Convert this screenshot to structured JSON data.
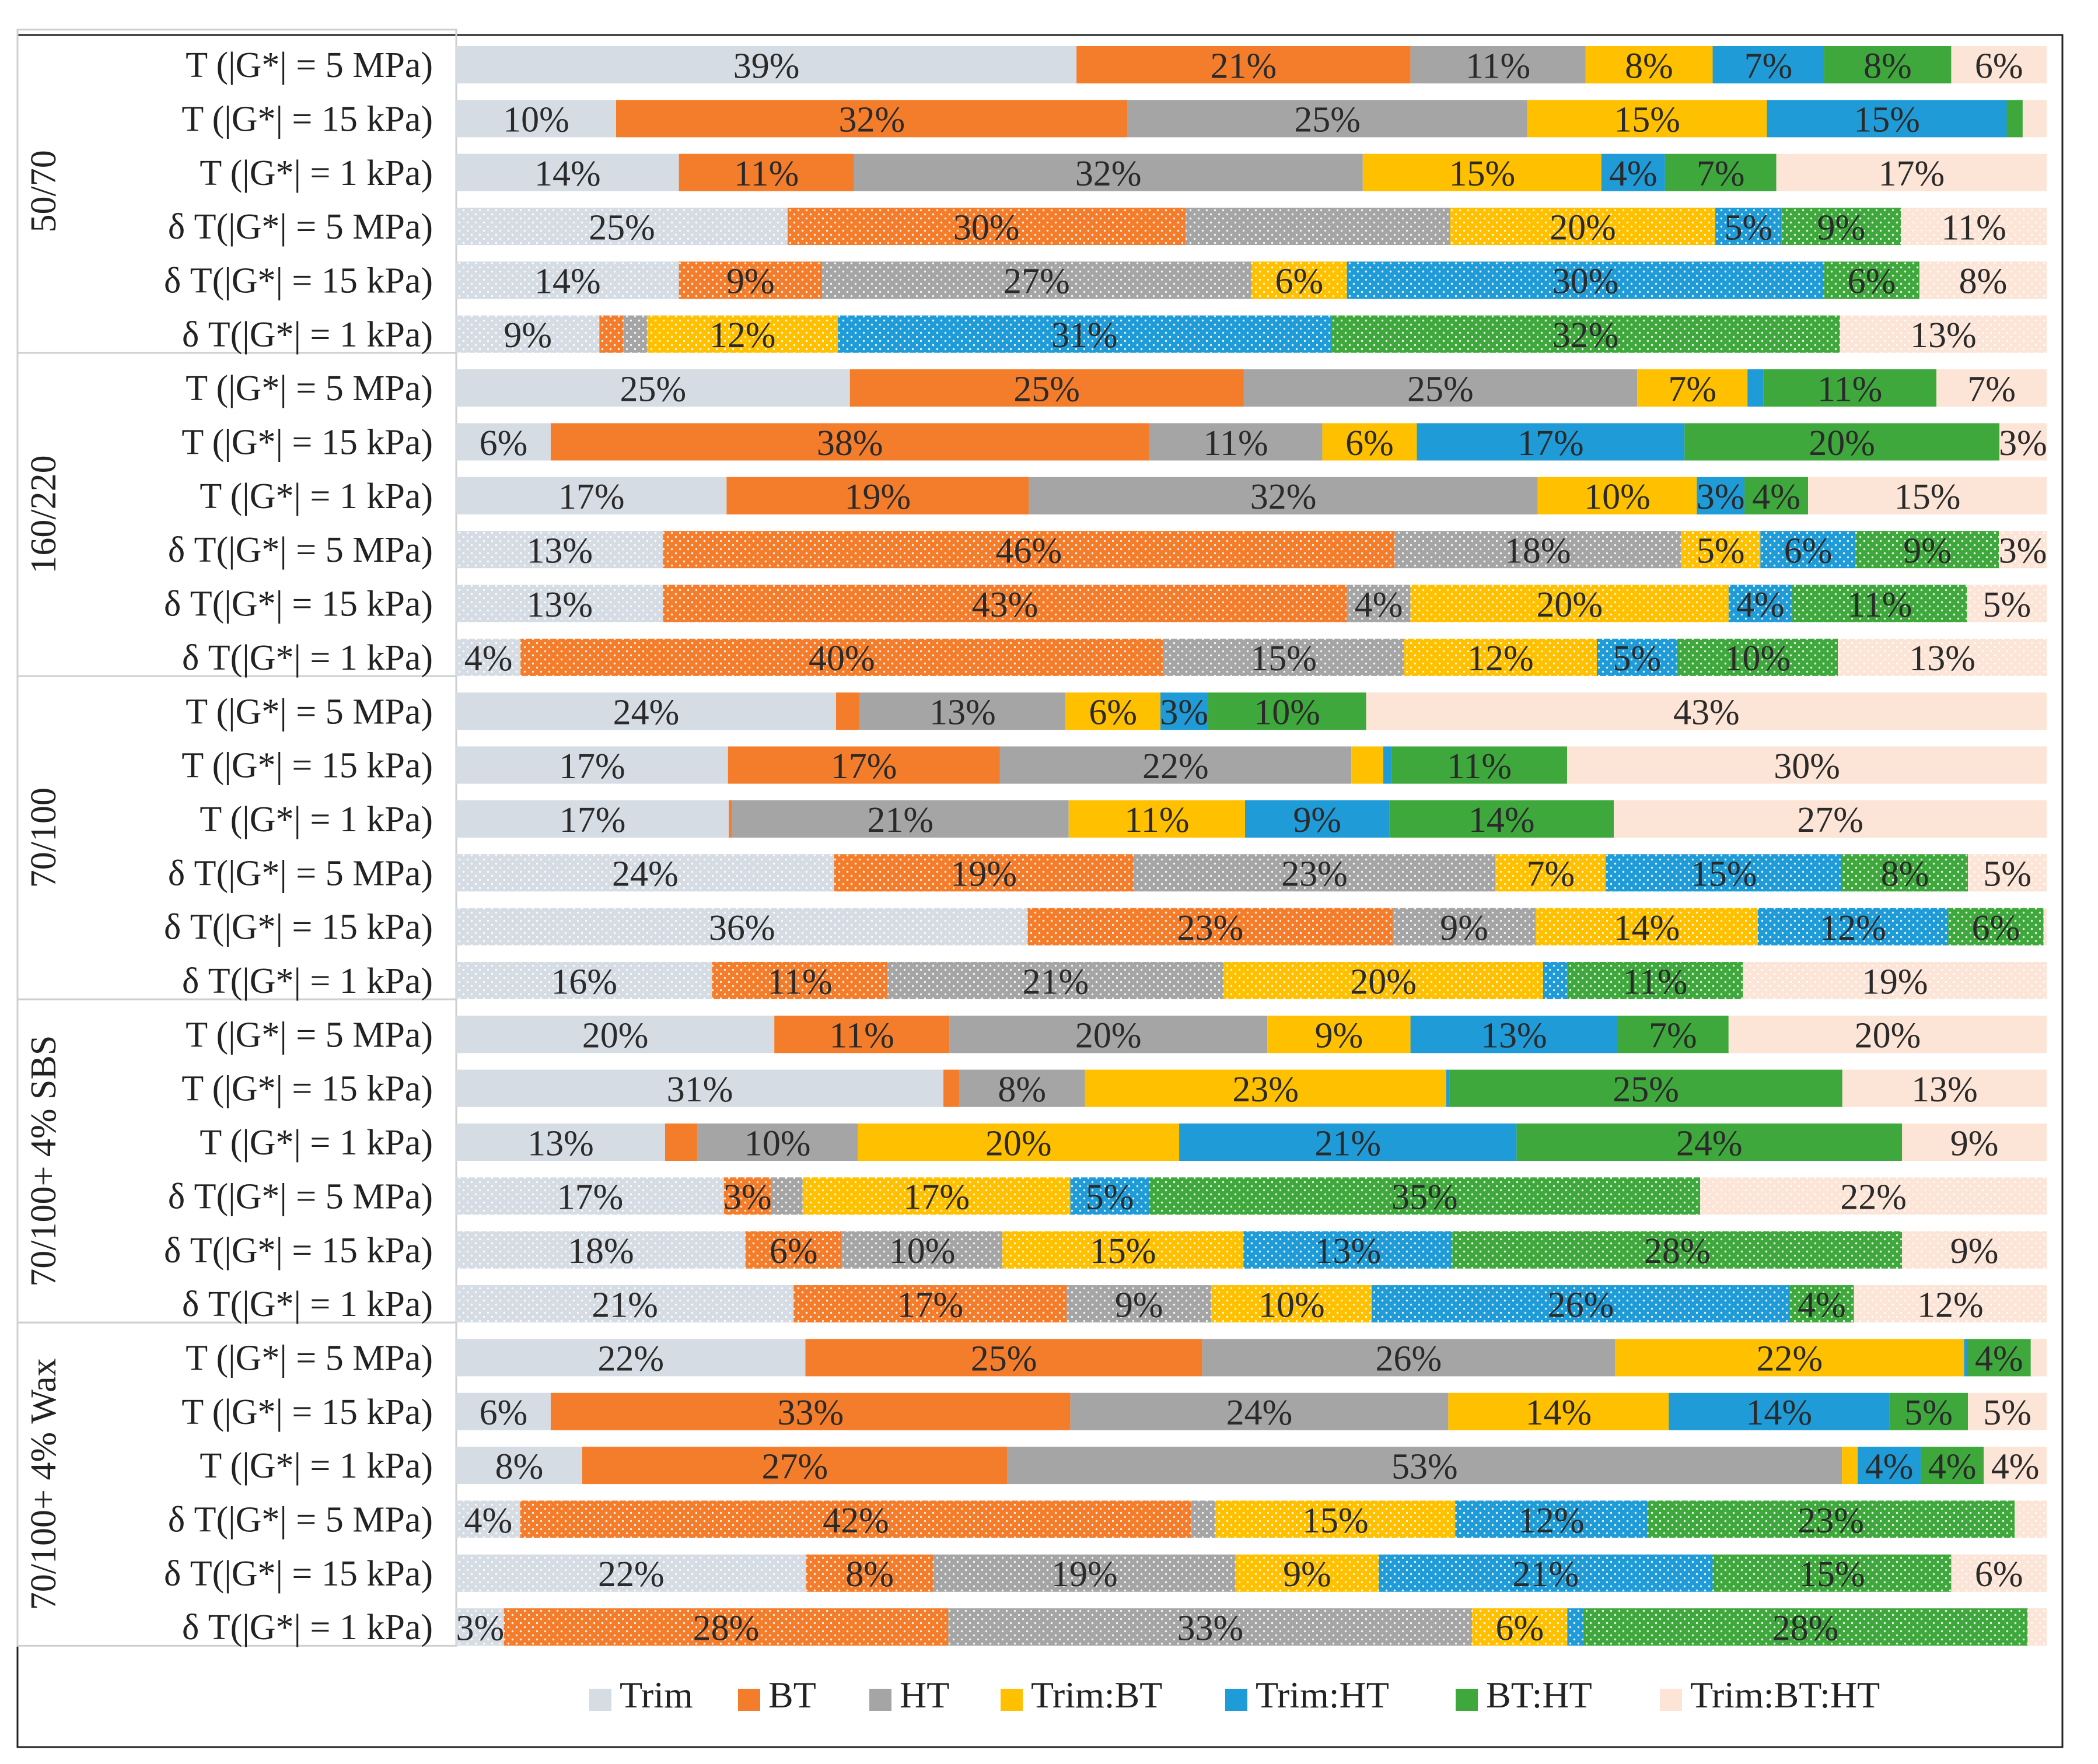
{
  "chart_data": {
    "type": "bar",
    "orientation": "horizontal",
    "stacked": "percent",
    "grid": false,
    "legend_position": "bottom",
    "series": [
      {
        "name": "Trim",
        "color": "#d6dce4"
      },
      {
        "name": "BT",
        "color": "#f47d2b"
      },
      {
        "name": "HT",
        "color": "#a5a5a5"
      },
      {
        "name": "Trim:BT",
        "color": "#ffc000"
      },
      {
        "name": "Trim:HT",
        "color": "#1f9bd7"
      },
      {
        "name": "BT:HT",
        "color": "#3fa83c"
      },
      {
        "name": "Trim:BT:HT",
        "color": "#fce4d6"
      }
    ],
    "groups": [
      {
        "name": "50/70",
        "rows": [
          {
            "label": "T (|G*| = 5 MPa)",
            "dotted": false,
            "values": [
              39,
              21,
              11,
              8,
              7,
              8,
              6
            ],
            "labels": [
              "39%",
              "21%",
              "11%",
              "8%",
              "7%",
              "8%",
              "6%"
            ]
          },
          {
            "label": "T (|G*| = 15 kPa)",
            "dotted": false,
            "values": [
              10,
              32,
              25,
              15,
              15,
              1,
              1.5
            ],
            "labels": [
              "10%",
              "32%",
              "25%",
              "15%",
              "15%",
              "",
              ""
            ]
          },
          {
            "label": "T (|G*| = 1 kPa)",
            "dotted": false,
            "values": [
              14,
              11,
              32,
              15,
              4,
              7,
              17
            ],
            "labels": [
              "14%",
              "11%",
              "32%",
              "15%",
              "4%",
              "7%",
              "17%"
            ]
          },
          {
            "label": "δ T(|G*| = 5 MPa)",
            "dotted": true,
            "values": [
              25,
              30,
              20,
              20,
              5,
              9,
              11
            ],
            "labels": [
              "25%",
              "30%",
              "",
              "20%",
              "5%",
              "9%",
              "11%"
            ]
          },
          {
            "label": "δ T(|G*| = 15 kPa)",
            "dotted": true,
            "values": [
              14,
              9,
              27,
              6,
              30,
              6,
              8
            ],
            "labels": [
              "14%",
              "9%",
              "27%",
              "6%",
              "30%",
              "6%",
              "8%"
            ]
          },
          {
            "label": "δ T(|G*| = 1 kPa)",
            "dotted": true,
            "values": [
              9,
              1.5,
              1.5,
              12,
              31,
              32,
              13
            ],
            "labels": [
              "9%",
              "",
              "",
              "12%",
              "31%",
              "32%",
              "13%"
            ]
          }
        ]
      },
      {
        "name": "160/220",
        "rows": [
          {
            "label": "T (|G*| = 5 MPa)",
            "dotted": false,
            "values": [
              25,
              25,
              25,
              7,
              1,
              11,
              7
            ],
            "labels": [
              "25%",
              "25%",
              "25%",
              "7%",
              "",
              "11%",
              "7%"
            ]
          },
          {
            "label": "T (|G*| = 15 kPa)",
            "dotted": false,
            "values": [
              6,
              38,
              11,
              6,
              17,
              20,
              3
            ],
            "labels": [
              "6%",
              "38%",
              "11%",
              "6%",
              "17%",
              "20%",
              "3%"
            ]
          },
          {
            "label": "T (|G*| = 1 kPa)",
            "dotted": false,
            "values": [
              17,
              19,
              32,
              10,
              3,
              4,
              15
            ],
            "labels": [
              "17%",
              "19%",
              "32%",
              "10%",
              "3%",
              "4%",
              "15%"
            ]
          },
          {
            "label": "δ T(|G*| = 5 MPa)",
            "dotted": true,
            "values": [
              13,
              46,
              18,
              5,
              6,
              9,
              3
            ],
            "labels": [
              "13%",
              "46%",
              "18%",
              "5%",
              "6%",
              "9%",
              "3%"
            ]
          },
          {
            "label": "δ T(|G*| = 15 kPa)",
            "dotted": true,
            "values": [
              13,
              43,
              4,
              20,
              4,
              11,
              5
            ],
            "labels": [
              "13%",
              "43%",
              "4%",
              "20%",
              "4%",
              "11%",
              "5%"
            ]
          },
          {
            "label": "δ T(|G*| = 1 kPa)",
            "dotted": true,
            "values": [
              4,
              40,
              15,
              12,
              5,
              10,
              13
            ],
            "labels": [
              "4%",
              "40%",
              "15%",
              "12%",
              "5%",
              "10%",
              "13%"
            ]
          }
        ]
      },
      {
        "name": "70/100",
        "rows": [
          {
            "label": "T (|G*| = 5 MPa)",
            "dotted": false,
            "values": [
              24,
              1.5,
              13,
              6,
              3,
              10,
              43
            ],
            "labels": [
              "24%",
              "",
              "13%",
              "6%",
              "3%",
              "10%",
              "43%"
            ]
          },
          {
            "label": "T (|G*| = 15 kPa)",
            "dotted": false,
            "values": [
              17,
              17,
              22,
              2,
              0.5,
              11,
              30
            ],
            "labels": [
              "17%",
              "17%",
              "22%",
              "",
              "",
              "11%",
              "30%"
            ]
          },
          {
            "label": "T (|G*| = 1 kPa)",
            "dotted": false,
            "values": [
              17,
              0.2,
              21,
              11,
              9,
              14,
              27
            ],
            "labels": [
              "17%",
              "",
              "21%",
              "11%",
              "9%",
              "14%",
              "27%"
            ]
          },
          {
            "label": "δ T(|G*| = 5 MPa)",
            "dotted": true,
            "values": [
              24,
              19,
              23,
              7,
              15,
              8,
              5
            ],
            "labels": [
              "24%",
              "19%",
              "23%",
              "7%",
              "15%",
              "8%",
              "5%"
            ]
          },
          {
            "label": "δ T(|G*| = 15 kPa)",
            "dotted": true,
            "values": [
              36,
              23,
              9,
              14,
              12,
              6,
              0.2
            ],
            "labels": [
              "36%",
              "23%",
              "9%",
              "14%",
              "12%",
              "6%",
              ""
            ]
          },
          {
            "label": "δ T(|G*| = 1 kPa)",
            "dotted": true,
            "values": [
              16,
              11,
              21,
              20,
              1.5,
              11,
              19
            ],
            "labels": [
              "16%",
              "11%",
              "21%",
              "20%",
              "",
              "11%",
              "19%"
            ]
          }
        ]
      },
      {
        "name": "70/100+ 4% SBS",
        "rows": [
          {
            "label": "T (|G*| = 5 MPa)",
            "dotted": false,
            "values": [
              20,
              11,
              20,
              9,
              13,
              7,
              20
            ],
            "labels": [
              "20%",
              "11%",
              "20%",
              "9%",
              "13%",
              "7%",
              "20%"
            ]
          },
          {
            "label": "T (|G*| = 15 kPa)",
            "dotted": false,
            "values": [
              31,
              1,
              8,
              23,
              0.2,
              25,
              13
            ],
            "labels": [
              "31%",
              "",
              "8%",
              "23%",
              "",
              "25%",
              "13%"
            ]
          },
          {
            "label": "T (|G*| = 1 kPa)",
            "dotted": false,
            "values": [
              13,
              2,
              10,
              20,
              21,
              24,
              9
            ],
            "labels": [
              "13%",
              "",
              "10%",
              "20%",
              "21%",
              "24%",
              "9%"
            ]
          },
          {
            "label": "δ T(|G*| = 5 MPa)",
            "dotted": true,
            "values": [
              17,
              3,
              2,
              17,
              5,
              35,
              22
            ],
            "labels": [
              "17%",
              "3%",
              "",
              "17%",
              "5%",
              "35%",
              "22%"
            ]
          },
          {
            "label": "δ T(|G*| = 15 kPa)",
            "dotted": true,
            "values": [
              18,
              6,
              10,
              15,
              13,
              28,
              9
            ],
            "labels": [
              "18%",
              "6%",
              "10%",
              "15%",
              "13%",
              "28%",
              "9%"
            ]
          },
          {
            "label": "δ T(|G*| = 1 kPa)",
            "dotted": true,
            "values": [
              21,
              17,
              9,
              10,
              26,
              4,
              12
            ],
            "labels": [
              "21%",
              "17%",
              "9%",
              "10%",
              "26%",
              "4%",
              "12%"
            ]
          }
        ]
      },
      {
        "name": "70/100+ 4% Wax",
        "rows": [
          {
            "label": "T (|G*| = 5 MPa)",
            "dotted": false,
            "values": [
              22,
              25,
              26,
              22,
              0.2,
              4,
              1
            ],
            "labels": [
              "22%",
              "25%",
              "26%",
              "22%",
              "",
              "4%",
              ""
            ]
          },
          {
            "label": "T (|G*| = 15 kPa)",
            "dotted": false,
            "values": [
              6,
              33,
              24,
              14,
              14,
              5,
              5
            ],
            "labels": [
              "6%",
              "33%",
              "24%",
              "14%",
              "14%",
              "5%",
              "5%"
            ]
          },
          {
            "label": "T (|G*| = 1 kPa)",
            "dotted": false,
            "values": [
              8,
              27,
              53,
              1,
              4,
              4,
              4
            ],
            "labels": [
              "8%",
              "27%",
              "53%",
              "",
              "4%",
              "4%",
              "4%"
            ]
          },
          {
            "label": "δ T(|G*| = 5 MPa)",
            "dotted": true,
            "values": [
              4,
              42,
              1.5,
              15,
              12,
              23,
              2
            ],
            "labels": [
              "4%",
              "42%",
              "",
              "15%",
              "12%",
              "23%",
              ""
            ]
          },
          {
            "label": "δ T(|G*| = 15 kPa)",
            "dotted": true,
            "values": [
              22,
              8,
              19,
              9,
              21,
              15,
              6
            ],
            "labels": [
              "22%",
              "8%",
              "19%",
              "9%",
              "21%",
              "15%",
              "6%"
            ]
          },
          {
            "label": "δ T(|G*| = 1 kPa)",
            "dotted": true,
            "values": [
              3,
              28,
              33,
              6,
              1,
              28,
              1.2
            ],
            "labels": [
              "3%",
              "28%",
              "33%",
              "6%",
              "",
              "28%",
              ""
            ]
          }
        ]
      }
    ]
  }
}
